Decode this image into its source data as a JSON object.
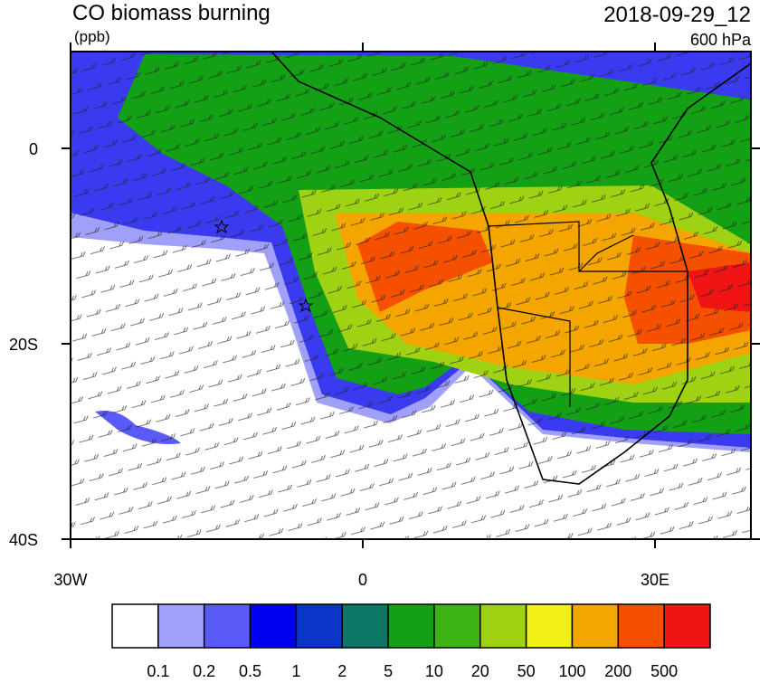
{
  "title": "CO biomass burning",
  "units": "(ppb)",
  "datetime": "2018-09-29_12",
  "level": "600 hPa",
  "map": {
    "lon_ticks": [
      {
        "value": -30,
        "label": "30W"
      },
      {
        "value": 0,
        "label": "0"
      },
      {
        "value": 30,
        "label": "30E"
      }
    ],
    "lat_ticks": [
      {
        "value": 0,
        "label": "0"
      },
      {
        "value": -20,
        "label": "20S"
      },
      {
        "value": -40,
        "label": "40S"
      }
    ]
  },
  "colorbar": {
    "colors": [
      "#ffffff",
      "#a0a0f8",
      "#5a5af8",
      "#0000f0",
      "#0a37c8",
      "#0a7864",
      "#14a014",
      "#3cb414",
      "#a0d214",
      "#f0f014",
      "#f5a500",
      "#f55000",
      "#f01414"
    ],
    "levels": [
      0.1,
      0.2,
      0.5,
      1,
      2,
      5,
      10,
      20,
      50,
      100,
      200,
      500
    ]
  }
}
